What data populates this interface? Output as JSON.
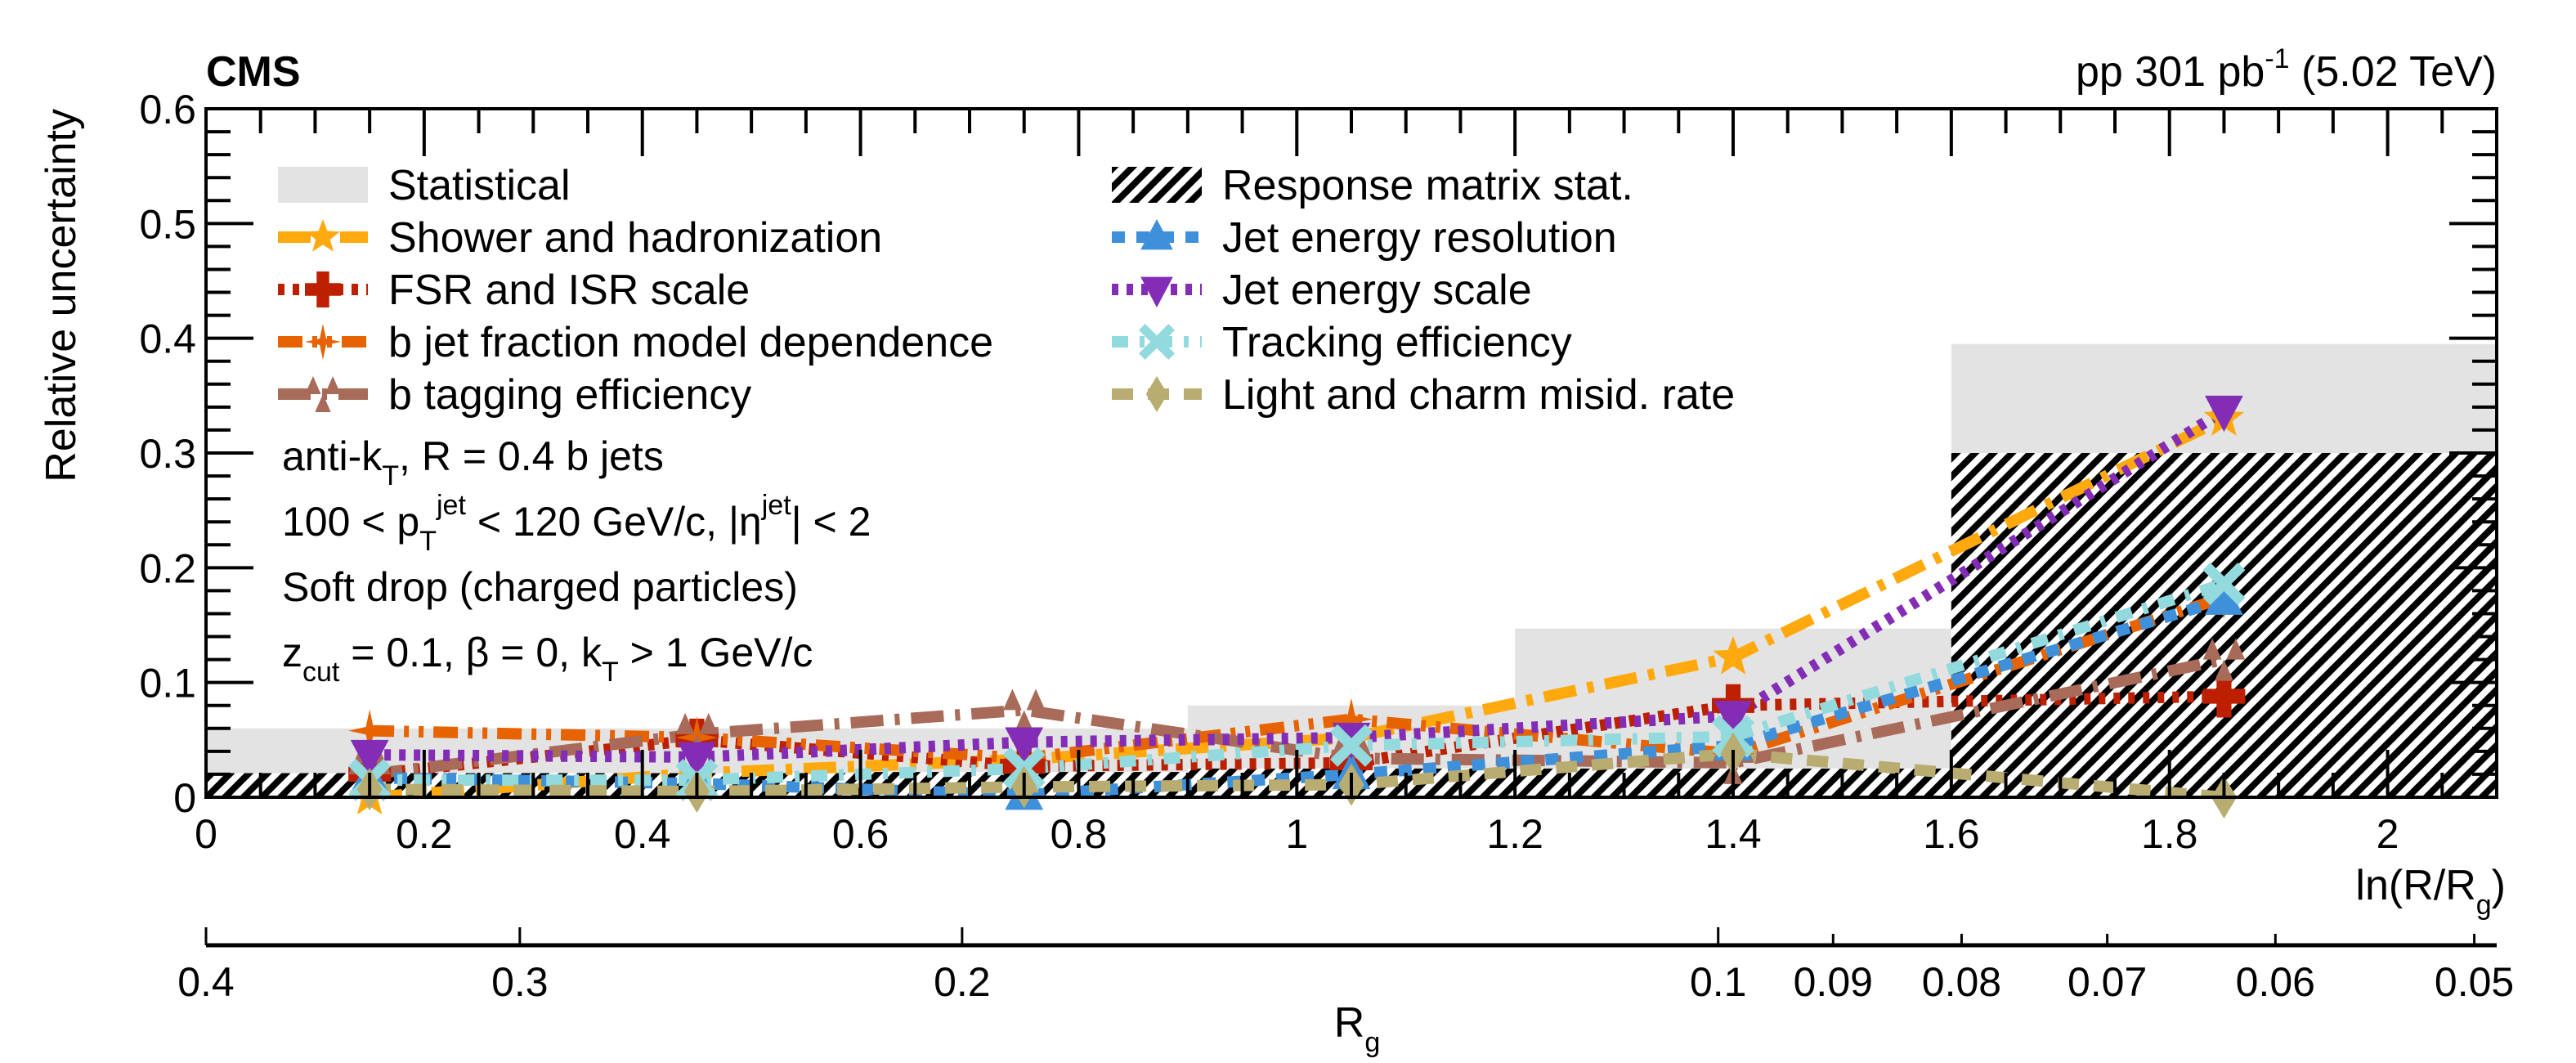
{
  "chart_data": {
    "type": "line",
    "title": "",
    "experiment_label": "CMS",
    "lumi_label": {
      "text": "pp 301 pb",
      "sup": "-1",
      "tail": " (5.02 TeV)"
    },
    "ylabel": "Relative uncertainty",
    "xlabel": {
      "main": "ln(R/R",
      "sub": "g",
      "tail": ")"
    },
    "secondary_xlabel": {
      "main": "R",
      "sub": "g"
    },
    "xlim": [
      0,
      2.1
    ],
    "ylim": [
      0,
      0.6
    ],
    "jet_radius_R": 0.4,
    "x_ticks": [
      0,
      0.2,
      0.4,
      0.6,
      0.8,
      1,
      1.2,
      1.4,
      1.6,
      1.8,
      2
    ],
    "x_tick_labels": [
      "0",
      "0.2",
      "0.4",
      "0.6",
      "0.8",
      "1",
      "1.2",
      "1.4",
      "1.6",
      "1.8",
      "2"
    ],
    "y_ticks": [
      0,
      0.1,
      0.2,
      0.3,
      0.4,
      0.5,
      0.6
    ],
    "y_tick_labels": [
      "0",
      "0.1",
      "0.2",
      "0.3",
      "0.4",
      "0.5",
      "0.6"
    ],
    "secondary_x_ticks": [
      0.4,
      0.3,
      0.2,
      0.1,
      0.09,
      0.08,
      0.07,
      0.06,
      0.05
    ],
    "secondary_x_tick_labels": [
      "0.4",
      "0.3",
      "0.2",
      "0.1",
      "0.09",
      "0.08",
      "0.07",
      "0.06",
      "0.05"
    ],
    "bin_edges": [
      0,
      0.3,
      0.6,
      0.9,
      1.2,
      1.6,
      2.1
    ],
    "bands": [
      {
        "name": "Statistical",
        "style": "fill",
        "color": "#e3e3e3",
        "values": [
          0.06,
          0.06,
          0.06,
          0.08,
          0.147,
          0.395
        ]
      },
      {
        "name": "Response matrix stat.",
        "style": "hatch",
        "color": "#000000",
        "values": [
          0.021,
          0.021,
          0.022,
          0.025,
          0.025,
          0.3
        ]
      }
    ],
    "x": [
      0.15,
      0.45,
      0.75,
      1.05,
      1.4,
      1.85
    ],
    "series": [
      {
        "name": "Shower and hadronization",
        "color": "#ffa90e",
        "dash": "dashdot",
        "marker": "star",
        "values": [
          0.0,
          0.021,
          0.033,
          0.052,
          0.122,
          0.33
        ]
      },
      {
        "name": "FSR and ISR scale",
        "color": "#bd1f01",
        "dash": "dotted",
        "marker": "cross",
        "values": [
          0.02,
          0.05,
          0.027,
          0.03,
          0.08,
          0.088
        ]
      },
      {
        "name": "b jet fraction model dependence",
        "color": "#e76300",
        "dash": "dashdotdot",
        "marker": "star4",
        "values": [
          0.058,
          0.052,
          0.034,
          0.068,
          0.038,
          0.174
        ]
      },
      {
        "name": "b tagging efficiency",
        "color": "#a96b59",
        "dash": "longdashdot",
        "marker": "triangles",
        "values": [
          0.02,
          0.055,
          0.076,
          0.034,
          0.03,
          0.12
        ]
      },
      {
        "name": "Jet energy resolution",
        "color": "#3f90da",
        "dash": "dashed",
        "marker": "triangle-up",
        "values": [
          0.017,
          0.012,
          0.002,
          0.02,
          0.045,
          0.172
        ]
      },
      {
        "name": "Jet energy scale",
        "color": "#832db6",
        "dash": "dotted",
        "marker": "triangle-down",
        "values": [
          0.037,
          0.035,
          0.048,
          0.052,
          0.071,
          0.337
        ]
      },
      {
        "name": "Tracking efficiency",
        "color": "#92dadd",
        "dash": "dashed2",
        "marker": "xcross",
        "values": [
          0.015,
          0.015,
          0.025,
          0.045,
          0.053,
          0.186
        ]
      },
      {
        "name": "Light and charm misid. rate",
        "color": "#b9ac70",
        "dash": "dashed3",
        "marker": "diamond",
        "values": [
          0.007,
          0.005,
          0.009,
          0.011,
          0.038,
          0.0
        ]
      }
    ],
    "legend": {
      "placement": "top-left",
      "columns": 2,
      "items": [
        "Statistical",
        "Shower and hadronization",
        "FSR and ISR scale",
        "b jet fraction model dependence",
        "b tagging efficiency",
        "Response matrix stat.",
        "Jet energy resolution",
        "Jet energy scale",
        "Tracking efficiency",
        "Light and charm misid. rate"
      ]
    },
    "annotations": [
      {
        "parts": [
          [
            "anti-k",
            ""
          ],
          [
            "T",
            "sub"
          ],
          [
            ", R = 0.4 b jets",
            ""
          ]
        ]
      },
      {
        "parts": [
          [
            "100 < p",
            ""
          ],
          [
            "T",
            "sub"
          ],
          [
            "jet",
            "sup"
          ],
          [
            " < 120 GeV/c, |η",
            ""
          ],
          [
            "jet",
            "sup"
          ],
          [
            "| < 2",
            ""
          ]
        ]
      },
      {
        "parts": [
          [
            "Soft drop (charged particles)",
            ""
          ]
        ]
      },
      {
        "parts": [
          [
            "z",
            ""
          ],
          [
            "cut",
            "sub"
          ],
          [
            " = 0.1, β = 0, k",
            ""
          ],
          [
            "T",
            "sub"
          ],
          [
            " > 1 GeV/c",
            ""
          ]
        ]
      }
    ],
    "grid": false
  }
}
